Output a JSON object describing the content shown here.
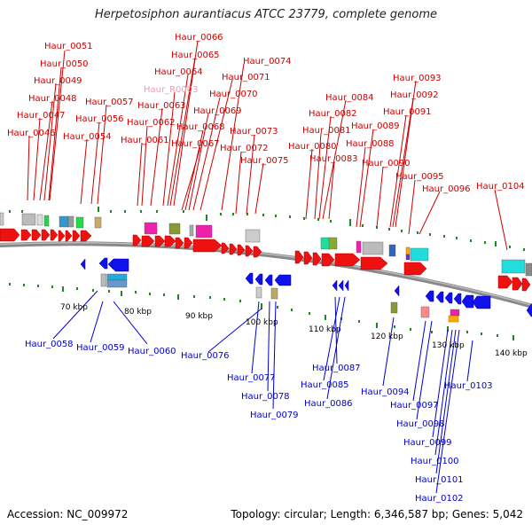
{
  "title": "Herpetosiphon aurantiacus ATCC 23779, complete genome",
  "footer": {
    "accession": "Accession: NC_009972",
    "info": "Topology: circular; Length: 6,346,587 bp; Genes: 5,042"
  },
  "colors": {
    "forward_gene": "#ee1111",
    "reverse_gene": "#1111ee",
    "backbone": "#888888",
    "label_forward": "#cc0000",
    "label_reverse": "#0000cc",
    "label_rna": "#ee99bb",
    "tick": "#1a8a1a"
  },
  "scale_labels": [
    "70 kbp",
    "80 kbp",
    "90 kbp",
    "100 kbp",
    "110 kbp",
    "120 kbp",
    "130 kbp",
    "140 kbp"
  ],
  "forward_labels": [
    "Haur_0051",
    "Haur_0050",
    "Haur_0049",
    "Haur_0048",
    "Haur_0047",
    "Haur_0046",
    "Haur_0057",
    "Haur_0056",
    "Haur_0054",
    "Haur_0066",
    "Haur_0065",
    "Haur_0064",
    "Haur_R0003",
    "Haur_0063",
    "Haur_0062",
    "Haur_0061",
    "Haur_0074",
    "Haur_0071",
    "Haur_0070",
    "Haur_0069",
    "Haur_0068",
    "Haur_0067",
    "Haur_0073",
    "Haur_0072",
    "Haur_0075",
    "Haur_0084",
    "Haur_0082",
    "Haur_0081",
    "Haur_0080",
    "Haur_0083",
    "Haur_0093",
    "Haur_0092",
    "Haur_0091",
    "Haur_0089",
    "Haur_0088",
    "Haur_0090",
    "Haur_0095",
    "Haur_0096",
    "Haur_0104"
  ],
  "reverse_labels": [
    "Haur_0058",
    "Haur_0059",
    "Haur_0060",
    "Haur_0076",
    "Haur_0077",
    "Haur_0078",
    "Haur_0079",
    "Haur_0087",
    "Haur_0085",
    "Haur_0086",
    "Haur_0094",
    "Haur_0097",
    "Haur_0098",
    "Haur_0099",
    "Haur_0100",
    "Haur_0101",
    "Haur_0102",
    "Haur_0103"
  ]
}
